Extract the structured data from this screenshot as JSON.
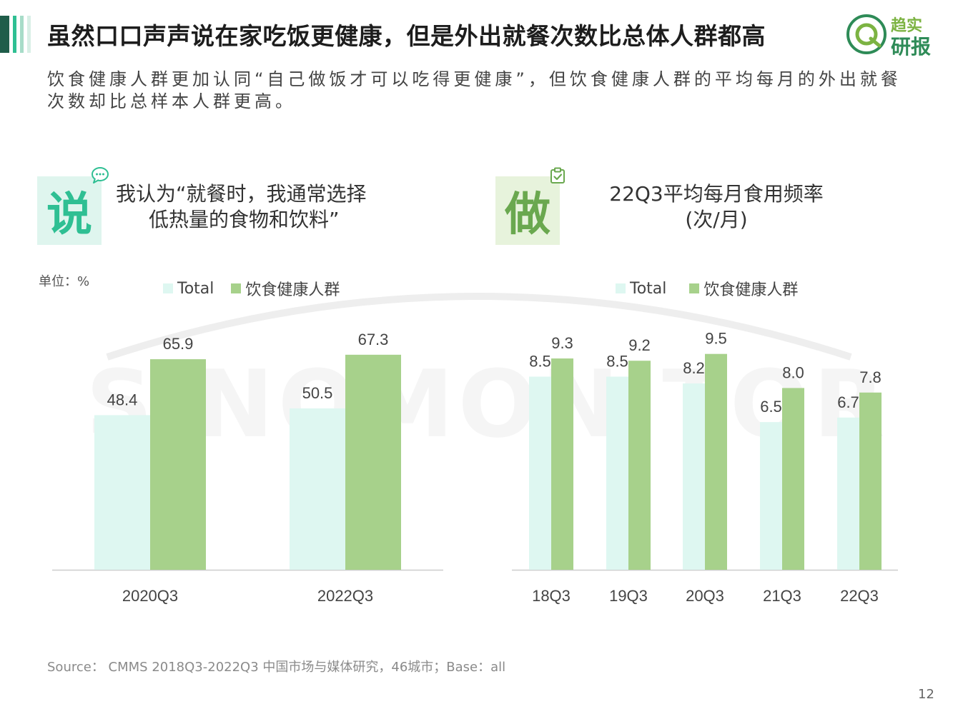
{
  "title": "虽然口口声声说在家吃饭更健康，但是外出就餐次数比总体人群都高",
  "subtitle": "饮食健康人群更加认同“自己做饭才可以吃得更健康”，但饮食健康人群的平均每月的外出就餐次数却比总样本人群更高。",
  "logo": {
    "line1": "趋实",
    "line2": "研报",
    "icon": "q-circle-logo"
  },
  "watermark": "SINOMONITOR",
  "colors": {
    "total": "#def7f1",
    "healthy": "#a7d18b",
    "accent": "#2fbf93",
    "green": "#6aa84f"
  },
  "left_panel": {
    "badge": "说",
    "icon": "speech-bubble-icon",
    "title_line1": "我认为“就餐时，我通常选择",
    "title_line2": "低热量的食物和饮料”",
    "unit": "单位：%",
    "legend": [
      "Total",
      "饮食健康人群"
    ]
  },
  "right_panel": {
    "badge": "做",
    "icon": "clipboard-check-icon",
    "title_line1": "22Q3平均每月食用频率",
    "title_line2": "(次/月)",
    "legend": [
      "Total",
      "饮食健康人群"
    ]
  },
  "chart_data": [
    {
      "type": "bar",
      "categories": [
        "2020Q3",
        "2022Q3"
      ],
      "series": [
        {
          "name": "Total",
          "values": [
            48.4,
            50.5
          ]
        },
        {
          "name": "饮食健康人群",
          "values": [
            65.9,
            67.3
          ]
        }
      ],
      "ylabel": "单位：%",
      "ylim": [
        0,
        80
      ],
      "grid": false,
      "legend_position": "top"
    },
    {
      "type": "bar",
      "categories": [
        "18Q3",
        "19Q3",
        "20Q3",
        "21Q3",
        "22Q3"
      ],
      "series": [
        {
          "name": "Total",
          "values": [
            8.5,
            8.5,
            8.2,
            6.5,
            6.7
          ]
        },
        {
          "name": "饮食健康人群",
          "values": [
            9.3,
            9.2,
            9.5,
            8.0,
            7.8
          ]
        }
      ],
      "title": "22Q3平均每月食用频率",
      "ylabel": "(次/月)",
      "ylim": [
        0,
        11.25
      ],
      "grid": false,
      "legend_position": "top"
    }
  ],
  "source": "Source： CMMS 2018Q3-2022Q3 中国市场与媒体研究，46城市；Base：all",
  "page_number": "12"
}
